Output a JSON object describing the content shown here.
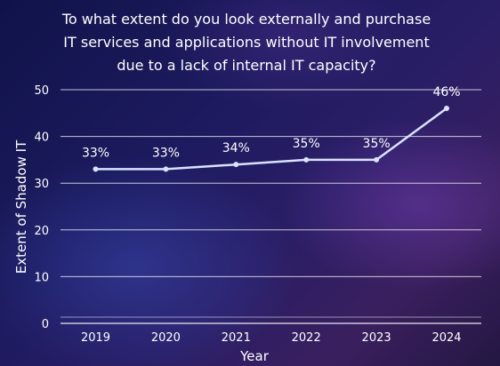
{
  "chart_data": {
    "type": "line",
    "title_lines": [
      "To what extent do you look externally and purchase",
      "IT services and applications without IT involvement",
      "due to a lack of internal IT capacity?"
    ],
    "xlabel": "Year",
    "ylabel": "Extent of Shadow IT",
    "categories": [
      "2019",
      "2020",
      "2021",
      "2022",
      "2023",
      "2024"
    ],
    "series": [
      {
        "values": [
          33,
          33,
          34,
          35,
          35,
          46
        ],
        "labels": [
          "33%",
          "33%",
          "34%",
          "35%",
          "35%",
          "46%"
        ]
      }
    ],
    "yticks": [
      0,
      10,
      20,
      30,
      40,
      50
    ],
    "ylim": [
      0,
      50
    ],
    "grid": true,
    "line_color": "#d9e2ff",
    "marker_color": "#d9e2ff"
  }
}
